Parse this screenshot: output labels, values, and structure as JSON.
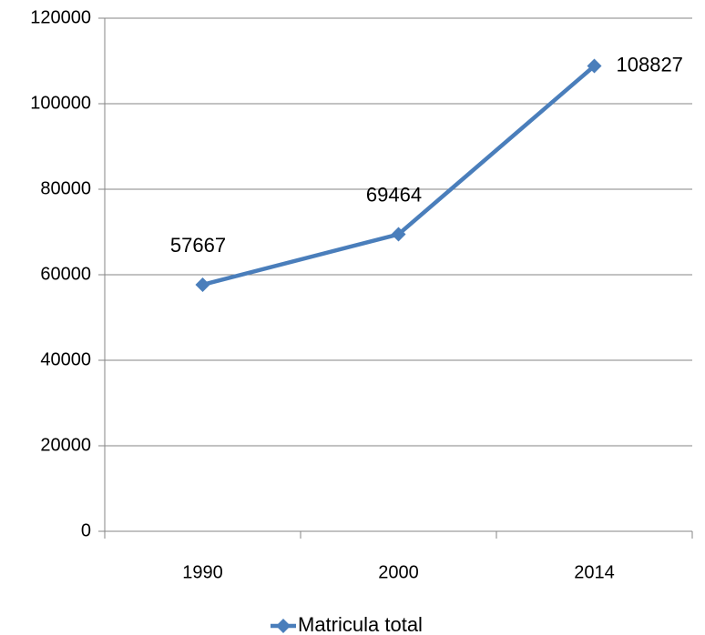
{
  "chart_data": {
    "type": "line",
    "categories": [
      "1990",
      "2000",
      "2014"
    ],
    "series": [
      {
        "name": "Matricula total",
        "color": "#4a7ebb",
        "values": [
          57667,
          69464,
          108827
        ]
      }
    ],
    "ylim": [
      0,
      120000
    ],
    "yticks": [
      0,
      20000,
      40000,
      60000,
      80000,
      100000,
      120000
    ],
    "grid": true,
    "legend": "bottom"
  }
}
